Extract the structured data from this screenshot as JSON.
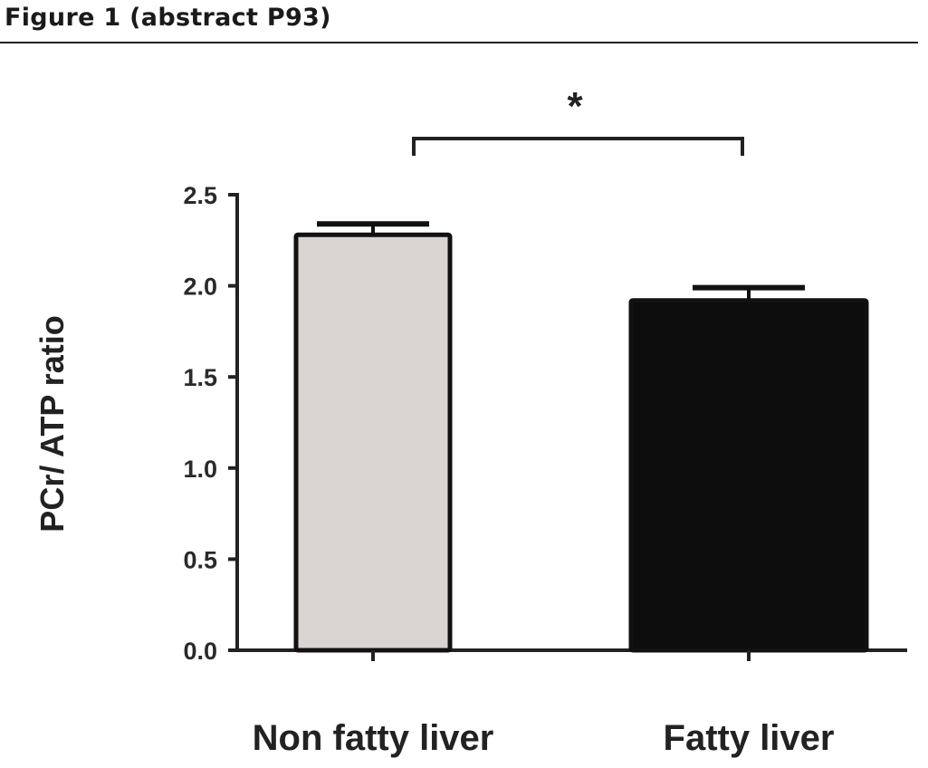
{
  "figure_title": "Figure 1 (abstract P93)",
  "chart_data": {
    "type": "bar",
    "title": "",
    "xlabel": "",
    "ylabel": "PCr/ ATP ratio",
    "categories": [
      "Non fatty liver",
      "Fatty liver"
    ],
    "values": [
      2.28,
      1.92
    ],
    "error_upper": [
      2.34,
      1.99
    ],
    "bar_colors": [
      "#d9d3d2",
      "#0d0d0d"
    ],
    "ylim": [
      0,
      2.5
    ],
    "yticks": [
      "0.0",
      "0.5",
      "1.0",
      "1.5",
      "2.0",
      "2.5"
    ],
    "ytick_values": [
      0,
      0.5,
      1.0,
      1.5,
      2.0,
      2.5
    ],
    "significance": "*",
    "grid": false
  }
}
